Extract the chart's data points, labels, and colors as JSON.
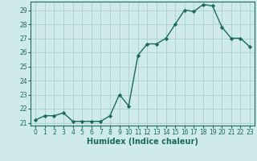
{
  "x": [
    0,
    1,
    2,
    3,
    4,
    5,
    6,
    7,
    8,
    9,
    10,
    11,
    12,
    13,
    14,
    15,
    16,
    17,
    18,
    19,
    20,
    21,
    22,
    23
  ],
  "y": [
    21.2,
    21.5,
    21.5,
    21.7,
    21.1,
    21.1,
    21.1,
    21.1,
    21.5,
    23.0,
    22.2,
    25.8,
    26.6,
    26.6,
    27.0,
    28.0,
    29.0,
    28.9,
    29.4,
    29.3,
    27.8,
    27.0,
    27.0,
    26.4
  ],
  "xlabel": "Humidex (Indice chaleur)",
  "bg_color": "#ceeaea",
  "grid_color": "#aacece",
  "line_color": "#1a6b5a",
  "marker_color": "#1a6b5a",
  "ylim_min": 20.8,
  "ylim_max": 29.6,
  "xlim_min": -0.5,
  "xlim_max": 23.5,
  "yticks": [
    21,
    22,
    23,
    24,
    25,
    26,
    27,
    28,
    29
  ],
  "xticks": [
    0,
    1,
    2,
    3,
    4,
    5,
    6,
    7,
    8,
    9,
    10,
    11,
    12,
    13,
    14,
    15,
    16,
    17,
    18,
    19,
    20,
    21,
    22,
    23
  ],
  "tick_label_fontsize": 5.5,
  "xlabel_fontsize": 7.0,
  "axis_color": "#1a6b5a",
  "tick_color": "#1a6b5a",
  "linewidth": 1.0,
  "markersize": 2.2
}
